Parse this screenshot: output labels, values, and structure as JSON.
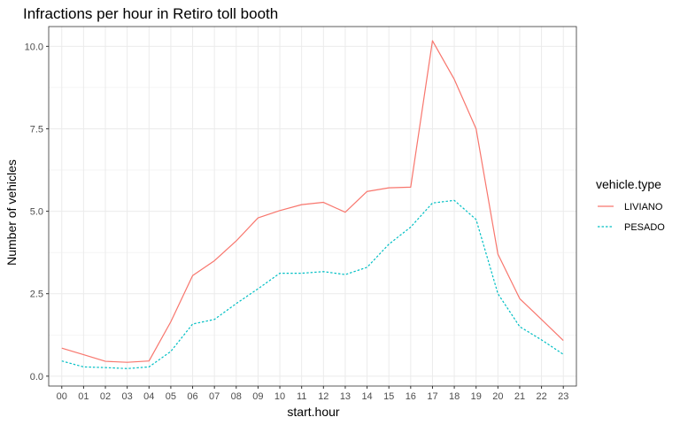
{
  "chart_data": {
    "type": "line",
    "title": "Infractions per hour in Retiro toll booth",
    "xlabel": "start.hour",
    "ylabel": "Number of vehicles",
    "x": [
      "00",
      "01",
      "02",
      "03",
      "04",
      "05",
      "06",
      "07",
      "08",
      "09",
      "10",
      "11",
      "12",
      "13",
      "14",
      "15",
      "16",
      "17",
      "18",
      "19",
      "20",
      "21",
      "22",
      "23"
    ],
    "ylim": [
      -0.3,
      10.6
    ],
    "yticks": [
      0.0,
      2.5,
      5.0,
      7.5,
      10.0
    ],
    "ytick_labels": [
      "0.0",
      "2.5",
      "5.0",
      "7.5",
      "10.0"
    ],
    "grid": true,
    "legend": {
      "title": "vehicle.type",
      "placement": "right"
    },
    "series": [
      {
        "name": "LIVIANO",
        "color": "#F8766D",
        "dash": "solid",
        "values": [
          0.85,
          0.65,
          0.45,
          0.42,
          0.46,
          1.65,
          3.05,
          3.5,
          4.1,
          4.8,
          5.02,
          5.2,
          5.27,
          4.97,
          5.6,
          5.71,
          5.73,
          10.17,
          9.0,
          7.5,
          3.7,
          2.35,
          1.72,
          1.08
        ]
      },
      {
        "name": "PESADO",
        "color": "#00BFC4",
        "dash": "dotted",
        "values": [
          0.46,
          0.28,
          0.26,
          0.23,
          0.28,
          0.75,
          1.58,
          1.72,
          2.2,
          2.65,
          3.12,
          3.12,
          3.17,
          3.08,
          3.3,
          4.0,
          4.52,
          5.25,
          5.33,
          4.75,
          2.5,
          1.5,
          1.1,
          0.66
        ]
      }
    ]
  }
}
